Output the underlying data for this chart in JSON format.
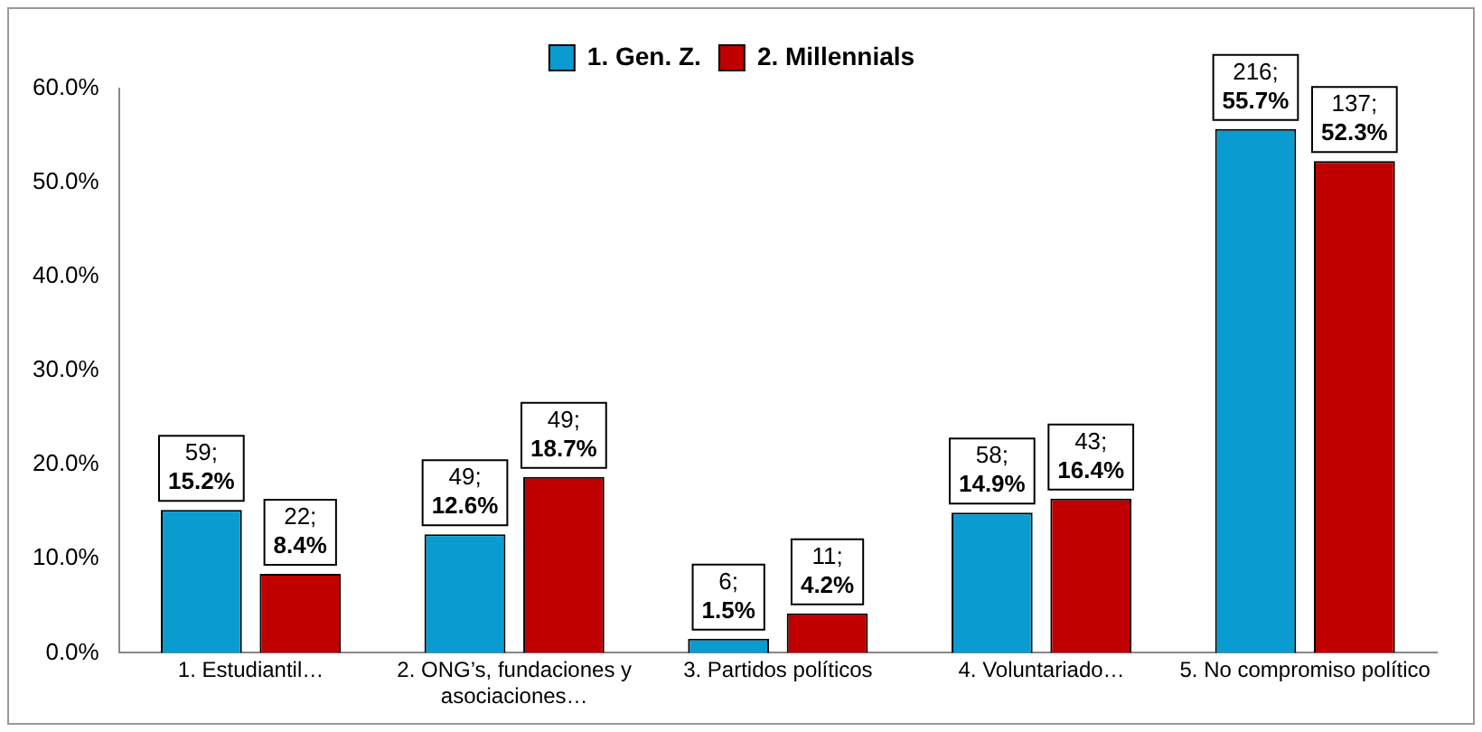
{
  "chart_data": {
    "type": "bar",
    "categories": [
      "1. Estudiantil…",
      "2. ONG’s, fundaciones y asociaciones…",
      "3. Partidos políticos",
      "4. Voluntariado…",
      "5. No compromiso político"
    ],
    "series": [
      {
        "name": "1. Gen. Z.",
        "color": "#0a9bd0",
        "values": [
          15.2,
          12.6,
          1.5,
          14.9,
          55.7
        ],
        "value_labels": [
          "59;\n15.2%",
          "49;\n12.6%",
          "6;\n1.5%",
          "58;\n14.9%",
          "216;\n55.7%"
        ]
      },
      {
        "name": "2. Millennials",
        "color": "#c00000",
        "values": [
          8.4,
          18.7,
          4.2,
          16.4,
          52.3
        ],
        "value_labels": [
          "22;\n8.4%",
          "49;\n18.7%",
          "11;\n4.2%",
          "43;\n16.4%",
          "137;\n52.3%"
        ]
      }
    ],
    "ylim": [
      0,
      60
    ],
    "yticks": [
      {
        "value": 0,
        "label": "0.0%"
      },
      {
        "value": 10,
        "label": "10.0%"
      },
      {
        "value": 20,
        "label": "20.0%"
      },
      {
        "value": 30,
        "label": "30.0%"
      },
      {
        "value": 40,
        "label": "40.0%"
      },
      {
        "value": 50,
        "label": "50.0%"
      },
      {
        "value": 60,
        "label": "60.0%"
      }
    ],
    "grid": false,
    "legend": "top"
  }
}
